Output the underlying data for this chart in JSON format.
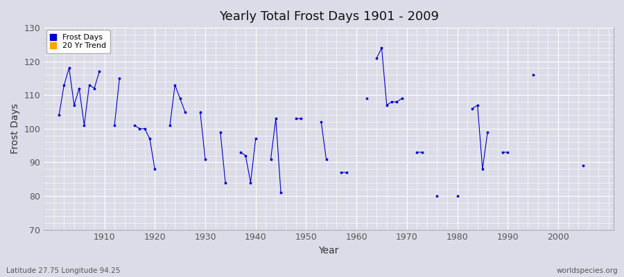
{
  "title": "Yearly Total Frost Days 1901 - 2009",
  "xlabel": "Year",
  "ylabel": "Frost Days",
  "subtitle_left": "Latitude 27.75 Longitude 94.25",
  "subtitle_right": "worldspecies.org",
  "ylim": [
    70,
    130
  ],
  "xlim": [
    1898,
    2011
  ],
  "yticks": [
    70,
    80,
    90,
    100,
    110,
    120,
    130
  ],
  "xticks": [
    1910,
    1920,
    1930,
    1940,
    1950,
    1960,
    1970,
    1980,
    1990,
    2000
  ],
  "line_color": "#0000cc",
  "bg_color": "#dcdce8",
  "grid_color": "#ffffff",
  "legend_entries": [
    "Frost Days",
    "20 Yr Trend"
  ],
  "legend_colors": [
    "#0000cc",
    "#FFA500"
  ],
  "years": [
    1901,
    1902,
    1903,
    1904,
    1905,
    1906,
    1907,
    1908,
    1909,
    1912,
    1913,
    1916,
    1917,
    1918,
    1919,
    1920,
    1923,
    1924,
    1925,
    1926,
    1929,
    1930,
    1933,
    1934,
    1937,
    1938,
    1939,
    1940,
    1943,
    1944,
    1945,
    1948,
    1949,
    1953,
    1954,
    1957,
    1958,
    1962,
    1964,
    1965,
    1966,
    1967,
    1968,
    1969,
    1972,
    1973,
    1976,
    1980,
    1983,
    1984,
    1985,
    1986,
    1989,
    1990,
    1995,
    2005
  ],
  "values": [
    104,
    113,
    118,
    107,
    112,
    101,
    113,
    112,
    117,
    101,
    115,
    101,
    100,
    100,
    97,
    88,
    101,
    113,
    109,
    105,
    105,
    91,
    99,
    84,
    93,
    92,
    84,
    97,
    91,
    103,
    81,
    103,
    103,
    102,
    91,
    87,
    87,
    109,
    121,
    124,
    107,
    108,
    108,
    109,
    93,
    93,
    80,
    80,
    106,
    107,
    88,
    99,
    93,
    93,
    116,
    89
  ]
}
